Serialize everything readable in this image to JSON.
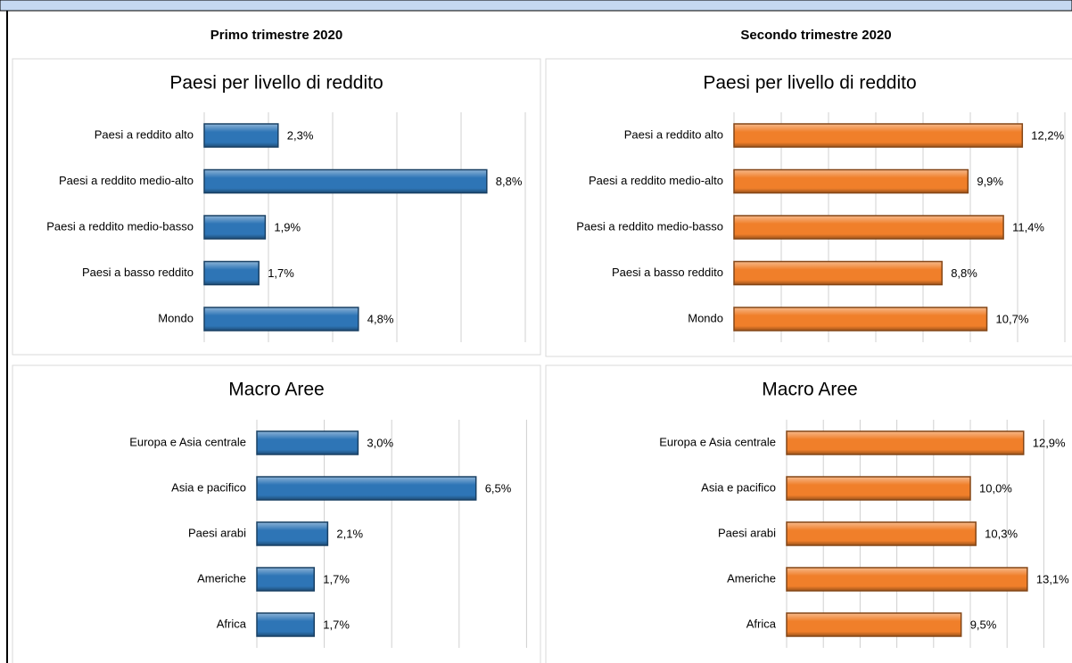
{
  "columns": [
    "Primo trimestre 2020",
    "Secondo trimestre 2020"
  ],
  "chart_data": [
    {
      "type": "bar",
      "title": "Paesi per livello di reddito",
      "color": "#2e75b6",
      "categories": [
        "Paesi a reddito alto",
        "Paesi a reddito medio-alto",
        "Paesi a reddito medio-basso",
        "Paesi a basso reddito",
        "Mondo"
      ],
      "values": [
        2.3,
        8.8,
        1.9,
        1.7,
        4.8
      ],
      "value_labels": [
        "2,3%",
        "8,8%",
        "1,9%",
        "1,7%",
        "4,8%"
      ],
      "xlim": [
        0,
        10
      ],
      "xticks": [
        0,
        2,
        4,
        6,
        8,
        10
      ],
      "grid": true
    },
    {
      "type": "bar",
      "title": "Paesi per livello di reddito",
      "color": "#f07f2a",
      "categories": [
        "Paesi a reddito alto",
        "Paesi a reddito medio-alto",
        "Paesi a reddito medio-basso",
        "Paesi a basso reddito",
        "Mondo"
      ],
      "values": [
        12.2,
        9.9,
        11.4,
        8.8,
        10.7
      ],
      "value_labels": [
        "12,2%",
        "9,9%",
        "11,4%",
        "8,8%",
        "10,7%"
      ],
      "xlim": [
        0,
        14
      ],
      "xticks": [
        0,
        2,
        4,
        6,
        8,
        10,
        12,
        14
      ],
      "grid": true
    },
    {
      "type": "bar",
      "title": "Macro Aree",
      "color": "#2e75b6",
      "categories": [
        "Europa e Asia centrale",
        "Asia e pacifico",
        "Paesi arabi",
        "Americhe",
        "Africa"
      ],
      "values": [
        3.0,
        6.5,
        2.1,
        1.7,
        1.7
      ],
      "value_labels": [
        "3,0%",
        "6,5%",
        "2,1%",
        "1,7%",
        "1,7%"
      ],
      "xlim": [
        0,
        8
      ],
      "xticks": [
        0,
        2,
        4,
        6,
        8
      ],
      "grid": true
    },
    {
      "type": "bar",
      "title": "Macro Aree",
      "color": "#f07f2a",
      "categories": [
        "Europa e Asia centrale",
        "Asia e pacifico",
        "Paesi arabi",
        "Americhe",
        "Africa"
      ],
      "values": [
        12.9,
        10.0,
        10.3,
        13.1,
        9.5
      ],
      "value_labels": [
        "12,9%",
        "10,0%",
        "10,3%",
        "13,1%",
        "9,5%"
      ],
      "xlim": [
        0,
        16
      ],
      "xticks": [
        0,
        2,
        4,
        6,
        8,
        10,
        12,
        14,
        16
      ],
      "grid": true
    }
  ]
}
